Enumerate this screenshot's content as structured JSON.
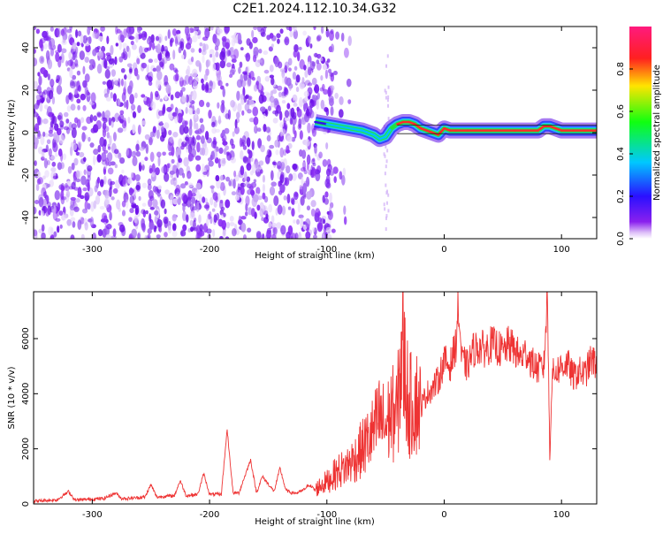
{
  "title": "C2E1.2024.112.10.34.G32",
  "colors": {
    "snr_line": "#ee3333",
    "spectrogram_noise": "#7a1ef0",
    "ridge_core": "#ff2a2a"
  },
  "colorbar": {
    "label": "Normalized spectral amplitude",
    "ticks": [
      "0.0",
      "0.2",
      "0.4",
      "0.6",
      "0.8"
    ],
    "tick_values": [
      0.0,
      0.2,
      0.4,
      0.6,
      0.8
    ],
    "range": [
      0,
      1
    ],
    "colormap": "gist_rainbow (purple→blue→cyan→green→yellow→red→magenta)"
  },
  "chart_data": [
    {
      "type": "heatmap",
      "title": "",
      "xlabel": "Height of straight line (km)",
      "ylabel": "Frequency (Hz)",
      "xlim": [
        -350,
        130
      ],
      "ylim": [
        -50,
        50
      ],
      "xticks": [
        -300,
        -200,
        -100,
        0,
        100
      ],
      "xtick_labels": [
        "-300",
        "-200",
        "-100",
        "0",
        "100"
      ],
      "yticks": [
        -40,
        -20,
        0,
        20,
        40
      ],
      "ytick_labels": [
        "-40",
        "-20",
        "0",
        "20",
        "40"
      ],
      "noise_region": {
        "x": [
          -350,
          -95
        ],
        "amplitude": 0.05
      },
      "ridge": {
        "x": [
          -110,
          -100,
          -90,
          -80,
          -70,
          -60,
          -55,
          -50,
          -45,
          -40,
          -35,
          -30,
          -25,
          -20,
          -15,
          -10,
          -5,
          0,
          5,
          10,
          20,
          40,
          60,
          80,
          85,
          90,
          95,
          100,
          110,
          120,
          130
        ],
        "freq": [
          5,
          4,
          3,
          2,
          1,
          -1,
          -3,
          -2,
          2,
          4,
          5,
          5,
          4,
          2,
          1,
          0,
          -1,
          2,
          1,
          1,
          1,
          1,
          1,
          1,
          3,
          3,
          2,
          1,
          1,
          1,
          1
        ],
        "amplitude": [
          0.25,
          0.3,
          0.4,
          0.45,
          0.45,
          0.4,
          0.35,
          0.4,
          0.7,
          0.8,
          0.85,
          0.85,
          0.85,
          0.85,
          0.85,
          0.85,
          0.85,
          0.85,
          0.85,
          0.85,
          0.85,
          0.85,
          0.85,
          0.85,
          0.9,
          0.9,
          0.85,
          0.85,
          0.85,
          0.85,
          0.85
        ]
      },
      "grid": false
    },
    {
      "type": "line",
      "title": "",
      "xlabel": "Height of straight line (km)",
      "ylabel": "SNR (10 * v/v)",
      "xlim": [
        -350,
        130
      ],
      "ylim": [
        0,
        7700
      ],
      "xticks": [
        -300,
        -200,
        -100,
        0,
        100
      ],
      "xtick_labels": [
        "-300",
        "-200",
        "-100",
        "0",
        "100"
      ],
      "yticks": [
        0,
        2000,
        4000,
        6000
      ],
      "ytick_labels": [
        "0",
        "2000",
        "4000",
        "6000"
      ],
      "series": [
        {
          "x": [
            -350,
            -330,
            -320,
            -315,
            -310,
            -290,
            -280,
            -275,
            -270,
            -255,
            -250,
            -245,
            -230,
            -225,
            -220,
            -210,
            -205,
            -200,
            -190,
            -185,
            -180,
            -175,
            -165,
            -160,
            -155,
            -145,
            -140,
            -135,
            -130,
            -125,
            -120,
            -115,
            -110,
            -105,
            -100,
            -95,
            -90,
            -85,
            -80,
            -75,
            -70,
            -65,
            -60,
            -55,
            -50,
            -45,
            -40,
            -36,
            -30,
            -25,
            -20,
            -15,
            -10,
            -5,
            0,
            5,
            10,
            12,
            15,
            20,
            25,
            30,
            35,
            40,
            45,
            50,
            55,
            60,
            65,
            70,
            75,
            80,
            85,
            88,
            90,
            92,
            95,
            100,
            105,
            110,
            115,
            120,
            125,
            130
          ],
          "values": [
            100,
            150,
            450,
            150,
            150,
            200,
            400,
            200,
            200,
            250,
            700,
            250,
            300,
            850,
            300,
            350,
            1100,
            350,
            350,
            2700,
            400,
            400,
            1600,
            400,
            1000,
            450,
            1300,
            500,
            400,
            400,
            500,
            700,
            500,
            700,
            800,
            1000,
            1200,
            1300,
            1500,
            1700,
            2000,
            2300,
            2600,
            3100,
            2800,
            3300,
            3200,
            5800,
            3500,
            3800,
            3500,
            4000,
            4200,
            4500,
            5200,
            5000,
            5800,
            7200,
            5200,
            5000,
            5600,
            5700,
            5600,
            5800,
            5700,
            5500,
            5800,
            5600,
            5300,
            5500,
            5100,
            4900,
            5000,
            7700,
            1700,
            4700,
            4800,
            5000,
            5100,
            4600,
            4800,
            4700,
            5200,
            5100
          ]
        }
      ],
      "grid": false
    }
  ]
}
